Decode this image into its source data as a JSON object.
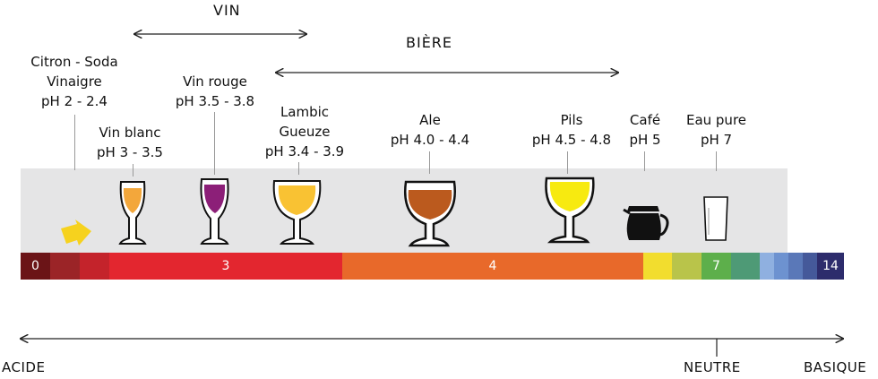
{
  "header": {
    "vin": "VIN",
    "biere": "BIÈRE"
  },
  "labels": {
    "citron": [
      "Citron - Soda",
      "Vinaigre",
      "pH 2 - 2.4"
    ],
    "vin_blanc": [
      "Vin blanc",
      "pH 3 - 3.5"
    ],
    "vin_rouge": [
      "Vin rouge",
      "pH 3.5 - 3.8"
    ],
    "lambic": [
      "Lambic",
      "Gueuze",
      "pH 3.4 - 3.9"
    ],
    "ale": [
      "Ale",
      "pH 4.0 - 4.4"
    ],
    "pils": [
      "Pils",
      "pH 4.5 - 4.8"
    ],
    "cafe": [
      "Café",
      "pH 5"
    ],
    "eau": [
      "Eau pure",
      "pH 7"
    ]
  },
  "scale": {
    "segments": [
      {
        "label": "0",
        "color": "#6b1417"
      },
      {
        "label": "",
        "color": "#9b2427"
      },
      {
        "label": "",
        "color": "#c4232b"
      },
      {
        "label": "3",
        "color": "#e3262f"
      },
      {
        "label": "4",
        "color": "#e8692a"
      },
      {
        "label": "",
        "color": "#f2dd2e"
      },
      {
        "label": "",
        "color": "#b9c44a"
      },
      {
        "label": "7",
        "color": "#5daf4b"
      },
      {
        "label": "",
        "color": "#4e9a76"
      },
      {
        "label": "",
        "color": "#6d92d0"
      },
      {
        "label": "",
        "color": "#5a78b8"
      },
      {
        "label": "",
        "color": "#45599a"
      },
      {
        "label": "14",
        "color": "#2d2c6c"
      }
    ]
  },
  "axis": {
    "acide": "ACIDE",
    "neutre": "NEUTRE",
    "basique": "BASIQUE"
  },
  "colors": {
    "vin_blanc": "#f3a73b",
    "vin_rouge": "#8c1f78",
    "lambic": "#f9c233",
    "ale": "#bb5a1e",
    "pils": "#f7ea10",
    "arrow": "#f6d21e"
  },
  "icons": [
    "wine-glass-icon",
    "coffee-pot-icon",
    "water-glass-icon",
    "pointer-arrow-icon"
  ]
}
